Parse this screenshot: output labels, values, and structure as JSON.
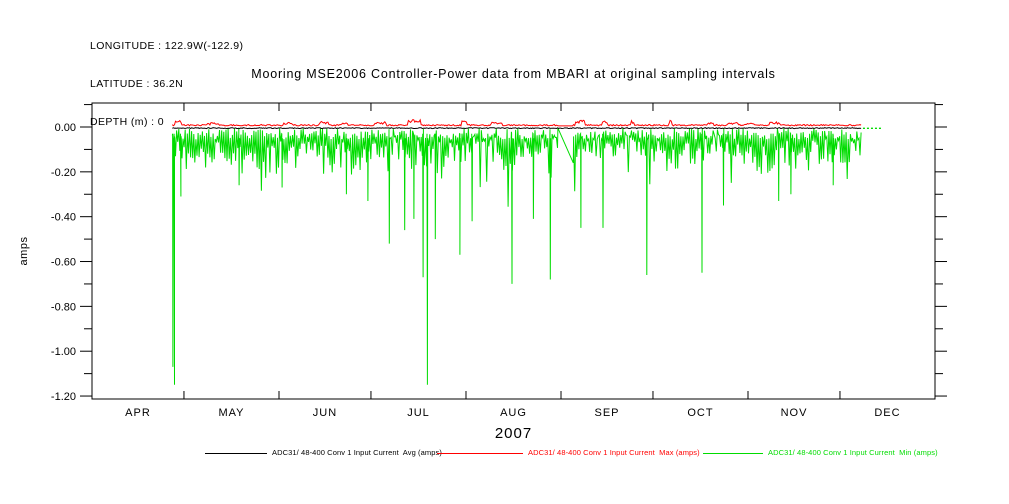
{
  "header": {
    "longitude": "LONGITUDE : 122.9W(-122.9)",
    "latitude": "LATITUDE : 36.2N",
    "depth": "DEPTH (m) : 0"
  },
  "title": "Mooring MSE2006 Controller-Power data from MBARI at original sampling intervals",
  "colors": {
    "axis": "#000000",
    "avg": "#000000",
    "max": "#ff0000",
    "min": "#00dc00",
    "background": "#ffffff"
  },
  "chart_data": {
    "type": "line",
    "title": "Mooring MSE2006 Controller-Power data from MBARI at original sampling intervals",
    "ylabel": "amps",
    "xlabel": "2007",
    "grid": false,
    "legend_position": "bottom",
    "x_axis": {
      "year_label": "2007",
      "month_labels": [
        "APR",
        "MAY",
        "JUN",
        "JUL",
        "AUG",
        "SEP",
        "OCT",
        "NOV",
        "DEC"
      ],
      "month_start_days": [
        0,
        30,
        61,
        91,
        122,
        153,
        183,
        214,
        244,
        275
      ],
      "range_days": [
        0,
        275
      ]
    },
    "y_axis": {
      "tick_labels": [
        "0.00",
        "-0.20",
        "-0.40",
        "-0.60",
        "-0.80",
        "-1.00",
        "-1.20"
      ],
      "tick_values": [
        0,
        -0.2,
        -0.4,
        -0.6,
        -0.8,
        -1.0,
        -1.2
      ],
      "minor_tick_step": 0.1,
      "visible_range": [
        0.107,
        -1.213
      ]
    },
    "series": [
      {
        "name": "avg",
        "stat": "Avg",
        "color": "#000000",
        "legend": "ADC31/ 48-400 Conv 1 Input Current  Avg (amps)",
        "baseline": -0.003,
        "noise": 0.004
      },
      {
        "name": "max",
        "stat": "Max",
        "color": "#ff0000",
        "legend": "ADC31/ 48-400 Conv 1 Input Current  Max (amps)",
        "baseline": 0.005,
        "noise": 0.006,
        "bump_amp_max": 0.026
      },
      {
        "name": "min",
        "stat": "Min",
        "color": "#00dc00",
        "legend": "ADC31/ 48-400 Conv 1 Input Current  Min (amps)",
        "typical_band": [
          -0.01,
          -0.2
        ]
      }
    ],
    "data_start_day": 26.2,
    "data_end_day": 251,
    "tail": {
      "start_day": 251.5,
      "end_day": 258,
      "value": -0.006
    },
    "gap": {
      "start_day": 152,
      "end_day": 157,
      "start_value": -0.005,
      "end_value": -0.16
    },
    "min_major_spikes": [
      [
        26.4,
        -1.07
      ],
      [
        26.9,
        -1.15
      ],
      [
        29,
        -0.31
      ],
      [
        48,
        -0.26
      ],
      [
        62,
        -0.27
      ],
      [
        83,
        -0.3
      ],
      [
        90,
        -0.33
      ],
      [
        97,
        -0.52
      ],
      [
        102,
        -0.46
      ],
      [
        105,
        -0.41
      ],
      [
        108,
        -0.67
      ],
      [
        109.4,
        -1.15
      ],
      [
        112,
        -0.5
      ],
      [
        120,
        -0.57
      ],
      [
        124,
        -0.42
      ],
      [
        137,
        -0.7
      ],
      [
        144,
        -0.41
      ],
      [
        149.5,
        -0.68
      ],
      [
        159.5,
        -0.45
      ],
      [
        166.7,
        -0.45
      ],
      [
        181,
        -0.66
      ],
      [
        199,
        -0.65
      ],
      [
        206,
        -0.35
      ],
      [
        224,
        -0.33
      ],
      [
        228,
        -0.3
      ],
      [
        241.8,
        -0.26
      ]
    ]
  },
  "legend": {
    "entries": [
      {
        "label": "ADC31/ 48-400 Conv 1 Input Current  Avg (amps)",
        "color": "#000000"
      },
      {
        "label": "ADC31/ 48-400 Conv 1 Input Current  Max (amps)",
        "color": "#ff0000"
      },
      {
        "label": "ADC31/ 48-400 Conv 1 Input Current  Min (amps)",
        "color": "#00dc00"
      }
    ]
  }
}
